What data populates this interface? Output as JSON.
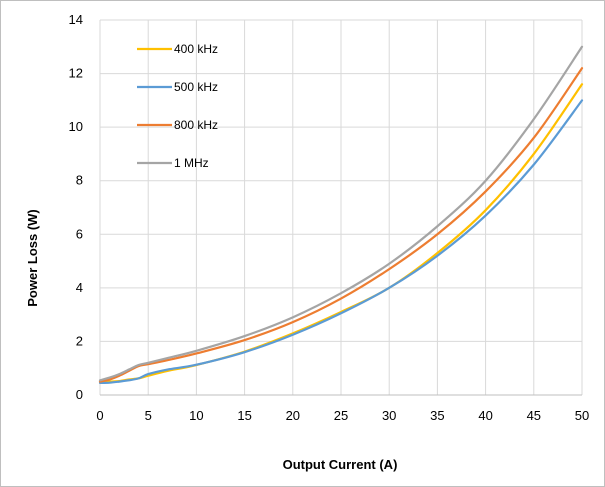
{
  "chart_data": {
    "type": "line",
    "title": "",
    "xlabel": "Output Current (A)",
    "ylabel": "Power Loss (W)",
    "xlim": [
      0,
      50
    ],
    "ylim": [
      0,
      14
    ],
    "xticks": [
      0,
      5,
      10,
      15,
      20,
      25,
      30,
      35,
      40,
      45,
      50
    ],
    "yticks": [
      0,
      2,
      4,
      6,
      8,
      10,
      12,
      14
    ],
    "grid": true,
    "legend_position": "top-left",
    "series": [
      {
        "name": "400 kHz",
        "color": "#FFC000",
        "x": [
          0,
          1,
          2,
          3,
          4,
          5,
          7,
          10,
          15,
          20,
          25,
          30,
          35,
          40,
          45,
          50
        ],
        "y": [
          0.5,
          0.5,
          0.52,
          0.58,
          0.62,
          0.72,
          0.9,
          1.12,
          1.62,
          2.3,
          3.1,
          4.0,
          5.3,
          6.9,
          9.0,
          11.6
        ]
      },
      {
        "name": "500 kHz",
        "color": "#5B9BD5",
        "x": [
          0,
          1,
          2,
          3,
          4,
          5,
          7,
          10,
          15,
          20,
          25,
          30,
          35,
          40,
          45,
          50
        ],
        "y": [
          0.45,
          0.46,
          0.5,
          0.55,
          0.62,
          0.78,
          0.95,
          1.13,
          1.6,
          2.25,
          3.05,
          4.0,
          5.2,
          6.7,
          8.6,
          11.0
        ]
      },
      {
        "name": "800 kHz",
        "color": "#ED7D31",
        "x": [
          0,
          1,
          2,
          3,
          4,
          5,
          7,
          10,
          15,
          20,
          25,
          30,
          35,
          40,
          45,
          50
        ],
        "y": [
          0.5,
          0.58,
          0.72,
          0.9,
          1.08,
          1.15,
          1.3,
          1.55,
          2.05,
          2.72,
          3.6,
          4.7,
          6.0,
          7.6,
          9.6,
          12.2
        ]
      },
      {
        "name": "1 MHz",
        "color": "#A5A5A5",
        "x": [
          0,
          1,
          2,
          3,
          4,
          5,
          7,
          10,
          15,
          20,
          25,
          30,
          35,
          40,
          45,
          50
        ],
        "y": [
          0.55,
          0.65,
          0.78,
          0.95,
          1.12,
          1.2,
          1.38,
          1.65,
          2.2,
          2.9,
          3.8,
          4.9,
          6.3,
          8.0,
          10.3,
          13.0
        ]
      }
    ]
  }
}
